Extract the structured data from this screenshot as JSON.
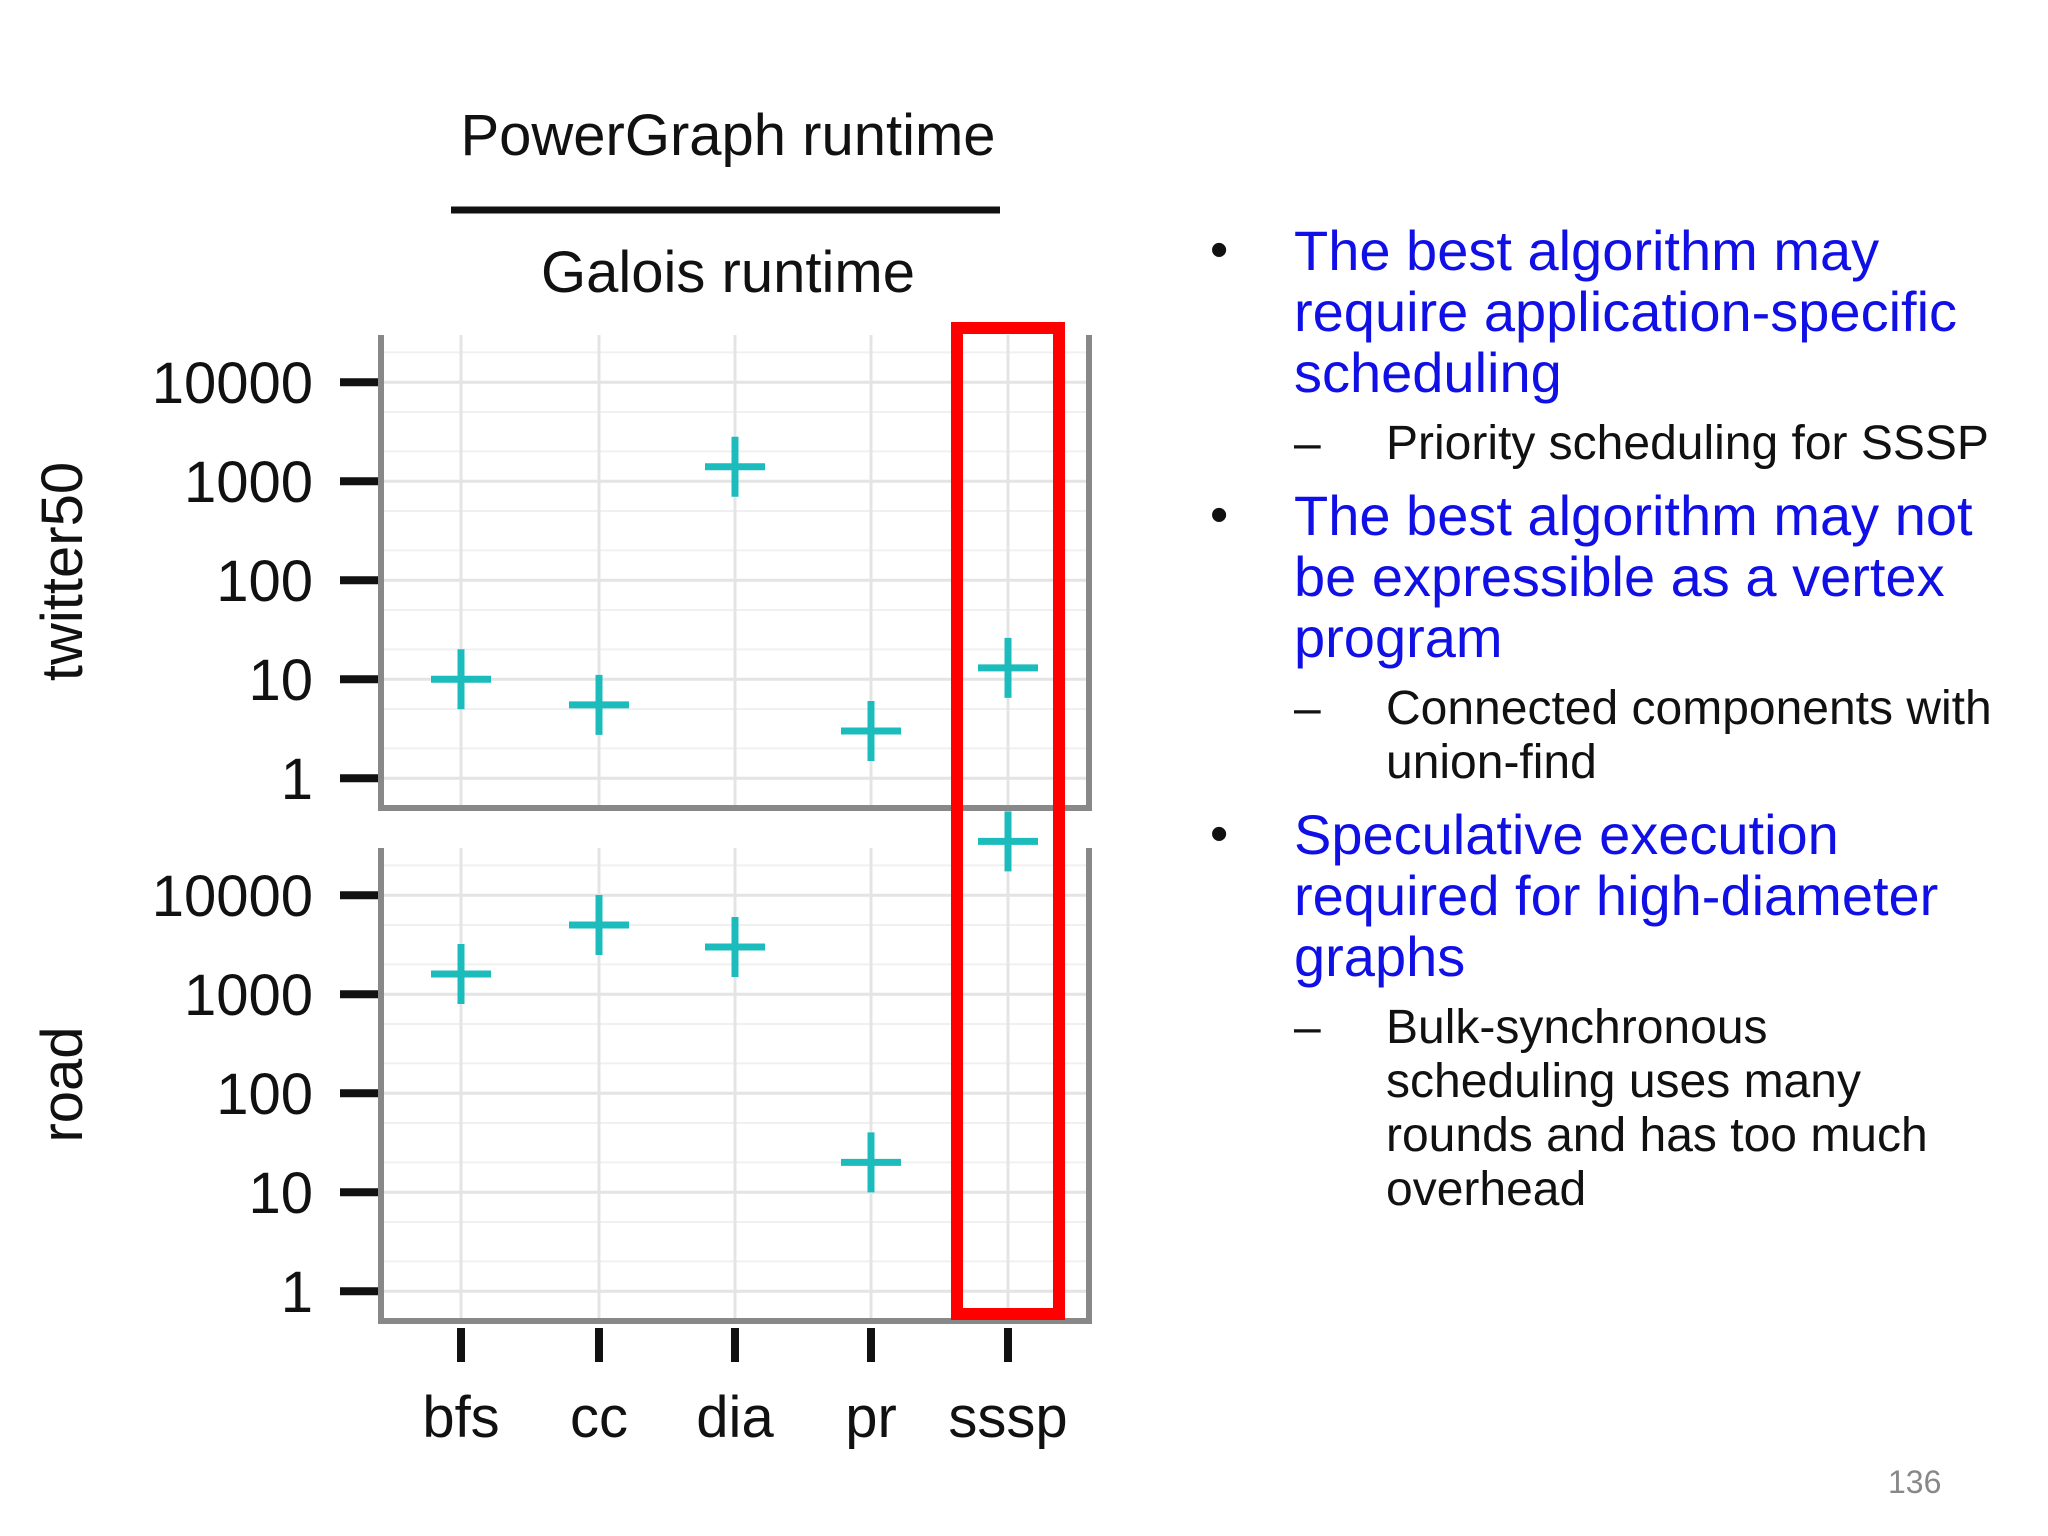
{
  "chart_data": {
    "type": "scatter",
    "title_numerator": "PowerGraph runtime",
    "title_denominator": "Galois runtime",
    "categories": [
      "bfs",
      "cc",
      "dia",
      "pr",
      "sssp"
    ],
    "y_scale": "log10",
    "ylim": [
      0.5,
      30000
    ],
    "y_ticks": [
      1,
      10,
      100,
      1000,
      10000
    ],
    "y_tick_labels": [
      "1",
      "10",
      "100",
      "1000",
      "10000"
    ],
    "grid": true,
    "highlight_category": "sssp",
    "panels": [
      {
        "label": "twitter50",
        "values": [
          10,
          5.5,
          1400,
          3,
          13
        ]
      },
      {
        "label": "road",
        "values": [
          1600,
          5000,
          3000,
          20,
          35000
        ]
      }
    ],
    "series": [
      {
        "marker": "plus",
        "color": "#1cbcbc"
      }
    ]
  },
  "bullets": [
    {
      "text": "The best algorithm may require application-specific scheduling",
      "sub": [
        "Priority scheduling for SSSP"
      ]
    },
    {
      "text": "The best algorithm may not be expressible as a vertex program",
      "sub": [
        "Connected components with union-find"
      ]
    },
    {
      "text": "Speculative execution required for high-diameter graphs",
      "sub": [
        "Bulk-synchronous scheduling uses many rounds and has too much overhead"
      ]
    }
  ],
  "bullet_symbol": "•",
  "sub_symbol": "–",
  "page_number": "136",
  "colors": {
    "accent": "#1010e6",
    "highlight": "#ff0000",
    "point": "#1cbcbc"
  }
}
